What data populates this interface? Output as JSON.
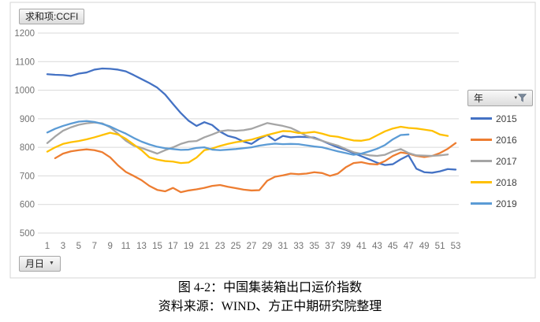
{
  "pivot_buttons": {
    "value_field": "求和项:CCFI",
    "axis_field": "月日",
    "legend_field": "年"
  },
  "legend": {
    "items": [
      {
        "label": "2015",
        "color": "#4472C4"
      },
      {
        "label": "2016",
        "color": "#ED7D31"
      },
      {
        "label": "2017",
        "color": "#A5A5A5"
      },
      {
        "label": "2018",
        "color": "#FFC000"
      },
      {
        "label": "2019",
        "color": "#5B9BD5"
      }
    ]
  },
  "caption": {
    "line1": "图 4-2：中国集装箱出口运价指数",
    "line2": "资料来源：WIND、方正中期研究院整理"
  },
  "chart_data": {
    "type": "line",
    "xlabel": "",
    "ylabel": "",
    "x_start": 1,
    "x_end": 53,
    "x_ticks": [
      1,
      3,
      5,
      7,
      9,
      11,
      13,
      15,
      17,
      19,
      21,
      23,
      25,
      27,
      29,
      31,
      33,
      35,
      37,
      39,
      41,
      43,
      45,
      47,
      49,
      51,
      53
    ],
    "ylim": [
      500,
      1200
    ],
    "y_ticks": [
      500,
      600,
      700,
      800,
      900,
      1000,
      1100,
      1200
    ],
    "grid": true,
    "legend_position": "right",
    "axis_text_color": "#737373",
    "gridline_color": "#d9d9d9",
    "frame_color": "#d6d6d6",
    "series": [
      {
        "name": "2015",
        "color": "#4472C4",
        "values": [
          1056,
          1054,
          1053,
          1050,
          1058,
          1062,
          1072,
          1076,
          1075,
          1072,
          1066,
          1053,
          1039,
          1025,
          1009,
          985,
          952,
          920,
          893,
          875,
          888,
          878,
          855,
          840,
          833,
          820,
          812,
          830,
          843,
          824,
          840,
          835,
          837,
          836,
          834,
          823,
          811,
          800,
          791,
          780,
          769,
          758,
          746,
          738,
          741,
          758,
          772,
          725,
          713,
          711,
          716,
          724,
          722
        ]
      },
      {
        "name": "2016",
        "color": "#ED7D31",
        "values": [
          null,
          762,
          778,
          786,
          790,
          793,
          790,
          783,
          765,
          737,
          714,
          700,
          685,
          665,
          651,
          646,
          658,
          643,
          649,
          653,
          658,
          665,
          668,
          662,
          657,
          652,
          649,
          650,
          683,
          697,
          702,
          708,
          706,
          708,
          713,
          710,
          700,
          708,
          730,
          745,
          748,
          742,
          740,
          752,
          770,
          782,
          778,
          770,
          766,
          770,
          780,
          795,
          815
        ]
      },
      {
        "name": "2017",
        "color": "#A5A5A5",
        "values": [
          815,
          838,
          858,
          870,
          879,
          884,
          887,
          884,
          870,
          848,
          823,
          806,
          798,
          788,
          778,
          790,
          800,
          812,
          820,
          822,
          835,
          845,
          856,
          860,
          858,
          860,
          865,
          875,
          885,
          880,
          875,
          868,
          855,
          840,
          831,
          823,
          814,
          806,
          794,
          783,
          777,
          772,
          770,
          774,
          786,
          794,
          780,
          772,
          771,
          770,
          772,
          775
        ]
      },
      {
        "name": "2018",
        "color": "#FFC000",
        "values": [
          785,
          800,
          812,
          818,
          822,
          828,
          835,
          843,
          851,
          845,
          830,
          810,
          790,
          765,
          757,
          752,
          750,
          745,
          747,
          764,
          790,
          796,
          805,
          812,
          818,
          822,
          827,
          835,
          843,
          850,
          857,
          856,
          850,
          851,
          854,
          848,
          840,
          837,
          830,
          824,
          823,
          828,
          842,
          856,
          866,
          872,
          868,
          866,
          862,
          858,
          845,
          840
        ]
      },
      {
        "name": "2019",
        "color": "#5B9BD5",
        "values": [
          852,
          865,
          875,
          883,
          890,
          892,
          889,
          882,
          873,
          860,
          848,
          833,
          820,
          810,
          802,
          797,
          794,
          791,
          792,
          798,
          800,
          792,
          790,
          792,
          794,
          797,
          800,
          806,
          810,
          813,
          811,
          812,
          811,
          807,
          803,
          800,
          793,
          786,
          780,
          774,
          778,
          786,
          795,
          808,
          828,
          843,
          845
        ]
      }
    ]
  }
}
